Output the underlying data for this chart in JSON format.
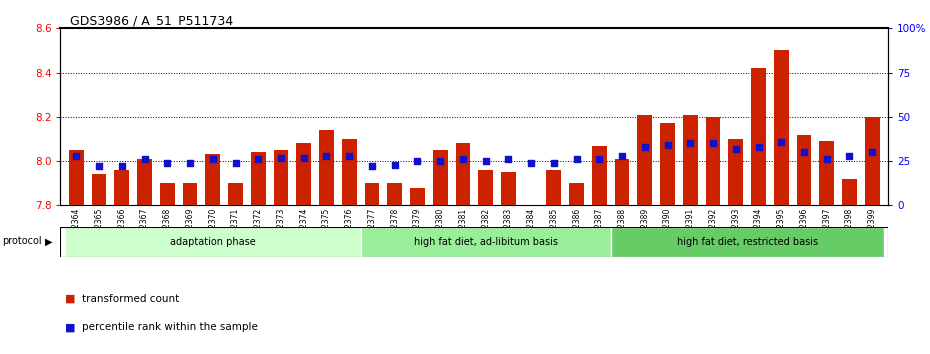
{
  "title": "GDS3986 / A_51_P511734",
  "samples": [
    "GSM672364",
    "GSM672365",
    "GSM672366",
    "GSM672367",
    "GSM672368",
    "GSM672369",
    "GSM672370",
    "GSM672371",
    "GSM672372",
    "GSM672373",
    "GSM672374",
    "GSM672375",
    "GSM672376",
    "GSM672377",
    "GSM672378",
    "GSM672379",
    "GSM672380",
    "GSM672381",
    "GSM672382",
    "GSM672383",
    "GSM672384",
    "GSM672385",
    "GSM672386",
    "GSM672387",
    "GSM672388",
    "GSM672389",
    "GSM672390",
    "GSM672391",
    "GSM672392",
    "GSM672393",
    "GSM672394",
    "GSM672395",
    "GSM672396",
    "GSM672397",
    "GSM672398",
    "GSM672399"
  ],
  "red_values": [
    8.05,
    7.94,
    7.96,
    8.01,
    7.9,
    7.9,
    8.03,
    7.9,
    8.04,
    8.05,
    8.08,
    8.14,
    8.1,
    7.9,
    7.9,
    7.88,
    8.05,
    8.08,
    7.96,
    7.95,
    7.8,
    7.96,
    7.9,
    8.07,
    8.01,
    8.21,
    8.17,
    8.21,
    8.2,
    8.1,
    8.42,
    8.5,
    8.12,
    8.09,
    7.92,
    8.2
  ],
  "blue_values": [
    28,
    22,
    22,
    26,
    24,
    24,
    26,
    24,
    26,
    27,
    27,
    28,
    28,
    22,
    23,
    25,
    25,
    26,
    25,
    26,
    24,
    24,
    26,
    26,
    28,
    33,
    34,
    35,
    35,
    32,
    33,
    36,
    30,
    26,
    28,
    30
  ],
  "ylim_left": [
    7.8,
    8.6
  ],
  "ylim_right": [
    0,
    100
  ],
  "yticks_left": [
    7.8,
    8.0,
    8.2,
    8.4,
    8.6
  ],
  "yticks_right": [
    0,
    25,
    50,
    75,
    100
  ],
  "ytick_labels_right": [
    "0",
    "25",
    "50",
    "75",
    "100%"
  ],
  "groups": [
    {
      "label": "adaptation phase",
      "start": 0,
      "end": 12,
      "color": "#ccffcc"
    },
    {
      "label": "high fat diet, ad-libitum basis",
      "start": 13,
      "end": 23,
      "color": "#99ee99"
    },
    {
      "label": "high fat diet, restricted basis",
      "start": 24,
      "end": 35,
      "color": "#66cc66"
    }
  ],
  "bar_color": "#cc2200",
  "dot_color": "#1111cc",
  "protocol_label": "protocol",
  "legend_items": [
    {
      "color": "#cc2200",
      "label": "transformed count"
    },
    {
      "color": "#1111cc",
      "label": "percentile rank within the sample"
    }
  ],
  "bar_bottom": 7.8,
  "top_border_color": "#000000"
}
